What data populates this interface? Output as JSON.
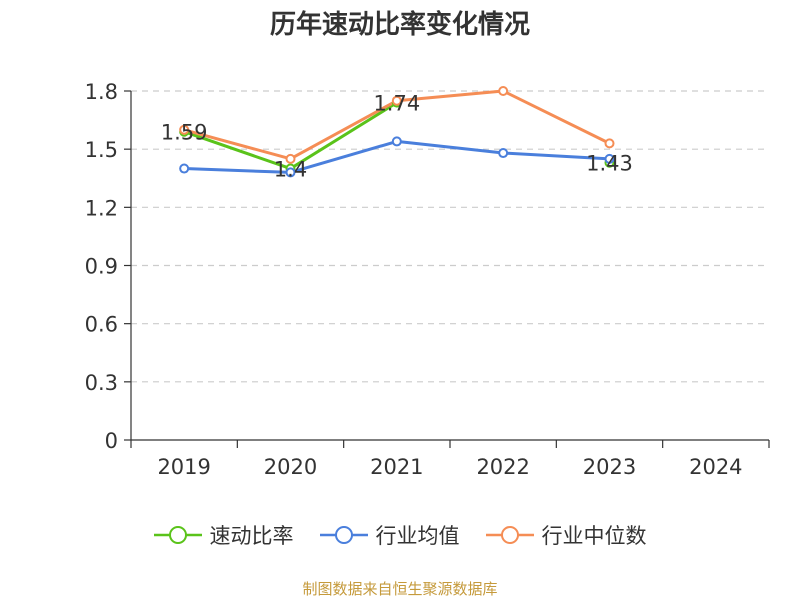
{
  "chart_data": {
    "type": "line",
    "title": "历年速动比率变化情况",
    "categories": [
      "2019",
      "2020",
      "2021",
      "2022",
      "2023",
      "2024"
    ],
    "yticks": [
      "0",
      "0.3",
      "0.6",
      "0.9",
      "1.2",
      "1.5",
      "1.8"
    ],
    "ylim": [
      0,
      1.8
    ],
    "grid": true,
    "legend_position": "bottom",
    "series": [
      {
        "name": "速动比率",
        "color": "#5ac31a",
        "values": [
          1.59,
          1.4,
          1.74,
          null,
          1.43,
          null
        ],
        "labels": [
          "1.59",
          "1.4",
          "1.74",
          "",
          "1.43",
          ""
        ]
      },
      {
        "name": "行业均值",
        "color": "#4a7fdc",
        "values": [
          1.4,
          1.38,
          1.54,
          1.48,
          1.45,
          null
        ]
      },
      {
        "name": "行业中位数",
        "color": "#f58d55",
        "values": [
          1.6,
          1.45,
          1.75,
          1.8,
          1.53,
          null
        ]
      }
    ]
  },
  "source": "制图数据来自恒生聚源数据库"
}
